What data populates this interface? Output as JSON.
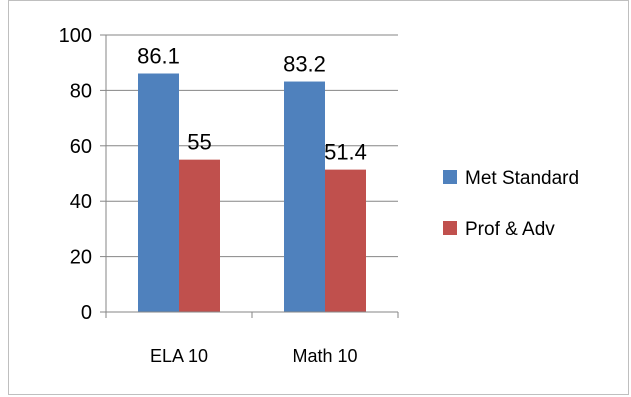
{
  "chart_data": {
    "type": "bar",
    "categories": [
      "ELA 10",
      "Math 10"
    ],
    "series": [
      {
        "name": "Met Standard",
        "values": [
          86.1,
          83.2
        ],
        "labels": [
          "86.1",
          "83.2"
        ],
        "color": "#4f81bd"
      },
      {
        "name": "Prof & Adv",
        "values": [
          55,
          51.4
        ],
        "labels": [
          "55",
          "51.4"
        ],
        "color": "#c0504d"
      }
    ],
    "ylim": [
      0,
      100
    ],
    "yticks": [
      0,
      20,
      40,
      60,
      80,
      100
    ],
    "grid": true,
    "legend": "right"
  }
}
